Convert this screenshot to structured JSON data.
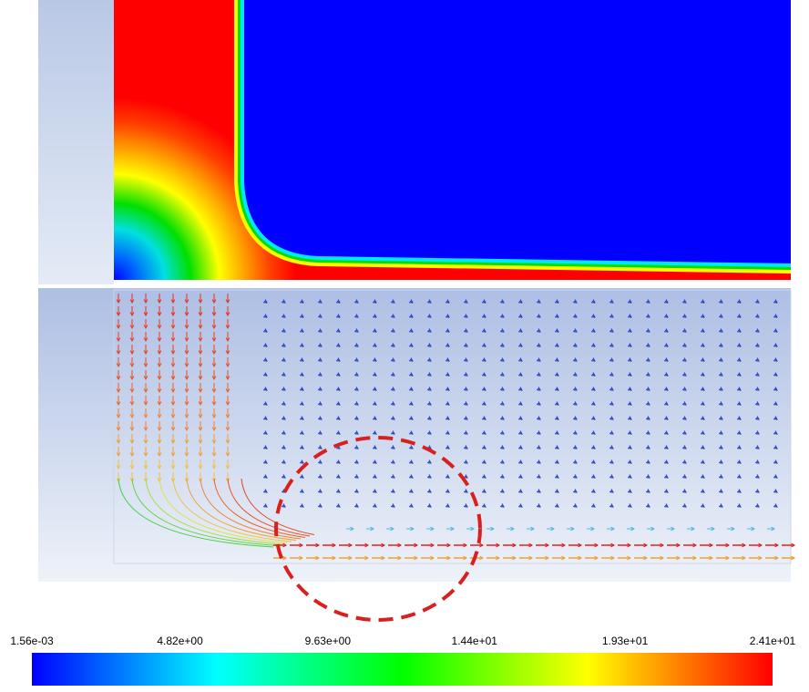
{
  "colorbar": {
    "ticks": [
      {
        "value": 0.00156,
        "label": "1.56e-03"
      },
      {
        "value": 4.82,
        "label": "4.82e+00"
      },
      {
        "value": 9.63,
        "label": "9.63e+00"
      },
      {
        "value": 14.4,
        "label": "1.44e+01"
      },
      {
        "value": 19.3,
        "label": "1.93e+01"
      },
      {
        "value": 24.1,
        "label": "2.41e+01"
      }
    ]
  }
}
